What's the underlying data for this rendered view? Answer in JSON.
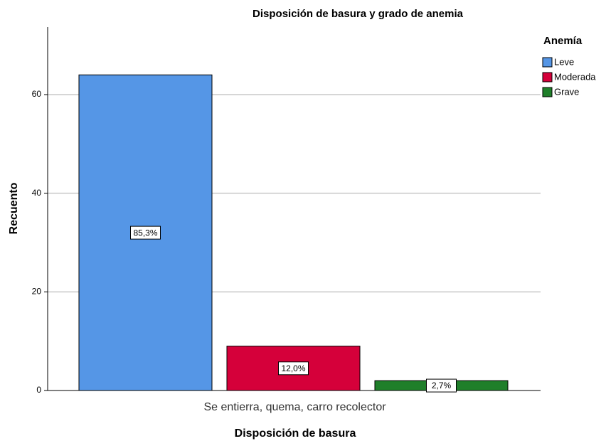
{
  "chart_data": {
    "type": "bar",
    "title": "Disposición de basura y grado de anemia",
    "x_label": "Disposición de basura",
    "y_label": "Recuento",
    "legend_title": "Anemía",
    "legend": "right",
    "categories": [
      "Se entierra, quema, carro recolector"
    ],
    "series": [
      {
        "name": "Leve",
        "color": "#5596e6",
        "values": [
          64
        ],
        "percents": [
          85.3
        ],
        "percent_labels": [
          "85,3%"
        ]
      },
      {
        "name": "Moderada",
        "color": "#d5003a",
        "values": [
          9
        ],
        "percents": [
          12.0
        ],
        "percent_labels": [
          "12,0%"
        ]
      },
      {
        "name": "Grave",
        "color": "#1f7f2a",
        "values": [
          2
        ],
        "percents": [
          2.7
        ],
        "percent_labels": [
          "2,7%"
        ]
      }
    ],
    "ylim": [
      0,
      73.7
    ],
    "yticks": [
      0,
      20,
      40,
      60
    ],
    "grid": true
  }
}
